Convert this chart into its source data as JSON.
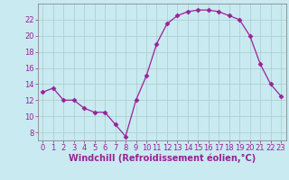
{
  "x": [
    0,
    1,
    2,
    3,
    4,
    5,
    6,
    7,
    8,
    9,
    10,
    11,
    12,
    13,
    14,
    15,
    16,
    17,
    18,
    19,
    20,
    21,
    22,
    23
  ],
  "y": [
    13,
    13.5,
    12,
    12,
    11,
    10.5,
    10.5,
    9,
    7.5,
    12,
    15,
    19,
    21.5,
    22.5,
    23,
    23.2,
    23.2,
    23,
    22.5,
    22,
    20,
    16.5,
    14,
    12.5
  ],
  "line_color": "#992299",
  "marker": "D",
  "marker_size": 2.5,
  "bg_color": "#c8eaf0",
  "grid_color": "#aacccc",
  "xlabel": "Windchill (Refroidissement éolien,°C)",
  "xlabel_color": "#992299",
  "xlabel_fontsize": 7.0,
  "tick_color": "#992299",
  "tick_fontsize": 6.0,
  "ylim": [
    7,
    24
  ],
  "yticks": [
    8,
    10,
    12,
    14,
    16,
    18,
    20,
    22
  ],
  "xlim": [
    -0.5,
    23.5
  ],
  "xticks": [
    0,
    1,
    2,
    3,
    4,
    5,
    6,
    7,
    8,
    9,
    10,
    11,
    12,
    13,
    14,
    15,
    16,
    17,
    18,
    19,
    20,
    21,
    22,
    23
  ]
}
